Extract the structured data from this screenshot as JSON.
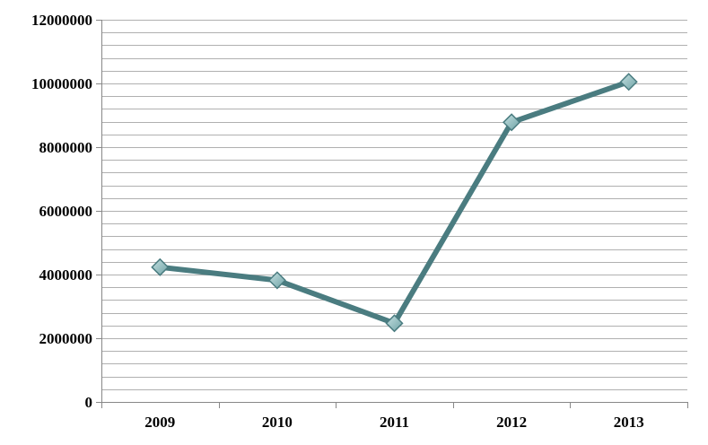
{
  "chart_data": {
    "type": "line",
    "title": "",
    "xlabel": "",
    "ylabel": "",
    "categories": [
      "2009",
      "2010",
      "2011",
      "2012",
      "2013"
    ],
    "series": [
      {
        "values": [
          4230000,
          3820000,
          2470000,
          8780000,
          10050000
        ]
      }
    ],
    "ylim": [
      0,
      12000000
    ],
    "y_ticks": [
      0,
      2000000,
      4000000,
      6000000,
      8000000,
      10000000,
      12000000
    ],
    "y_tick_labels": [
      "0",
      "2000000",
      "4000000",
      "6000000",
      "8000000",
      "10000000",
      "12000000"
    ],
    "y_minor_step": 400000,
    "grid": true,
    "legend": "none",
    "line_color": "#4a7c80",
    "marker": "diamond",
    "marker_color": "#8fbcbe",
    "marker_edge_color": "#4a7c80",
    "gridline_color": "#b0b0b0",
    "axis_color": "#888888"
  }
}
